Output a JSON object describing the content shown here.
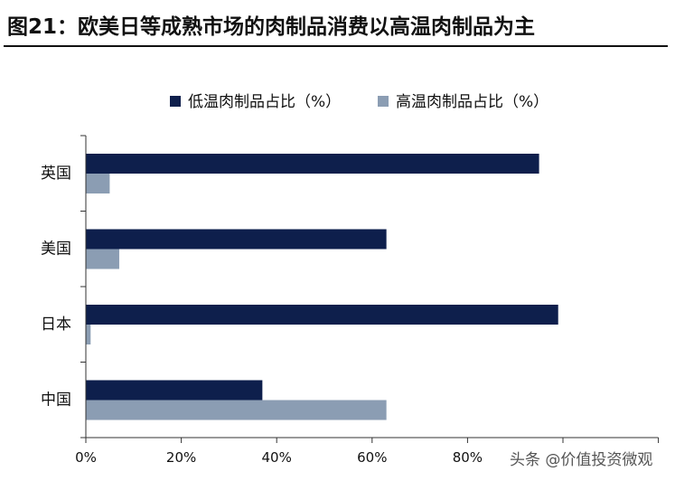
{
  "chart_data": {
    "type": "bar",
    "orientation": "horizontal",
    "title": "图21：欧美日等成熟市场的肉制品消费以高温肉制品为主",
    "categories": [
      "英国",
      "美国",
      "日本",
      "中国"
    ],
    "series": [
      {
        "name": "低温肉制品占比（%）",
        "color": "#0e1f4c",
        "values": [
          95,
          63,
          99,
          37
        ]
      },
      {
        "name": "高温肉制品占比（%）",
        "color": "#8b9db3",
        "values": [
          5,
          7,
          1,
          63
        ]
      }
    ],
    "xlim": [
      0,
      120
    ],
    "xticks": [
      0,
      20,
      40,
      60,
      80
    ],
    "tick_format": "%",
    "legend_position": "top-center",
    "grid": false
  },
  "watermark": "头条 @价值投资微观"
}
